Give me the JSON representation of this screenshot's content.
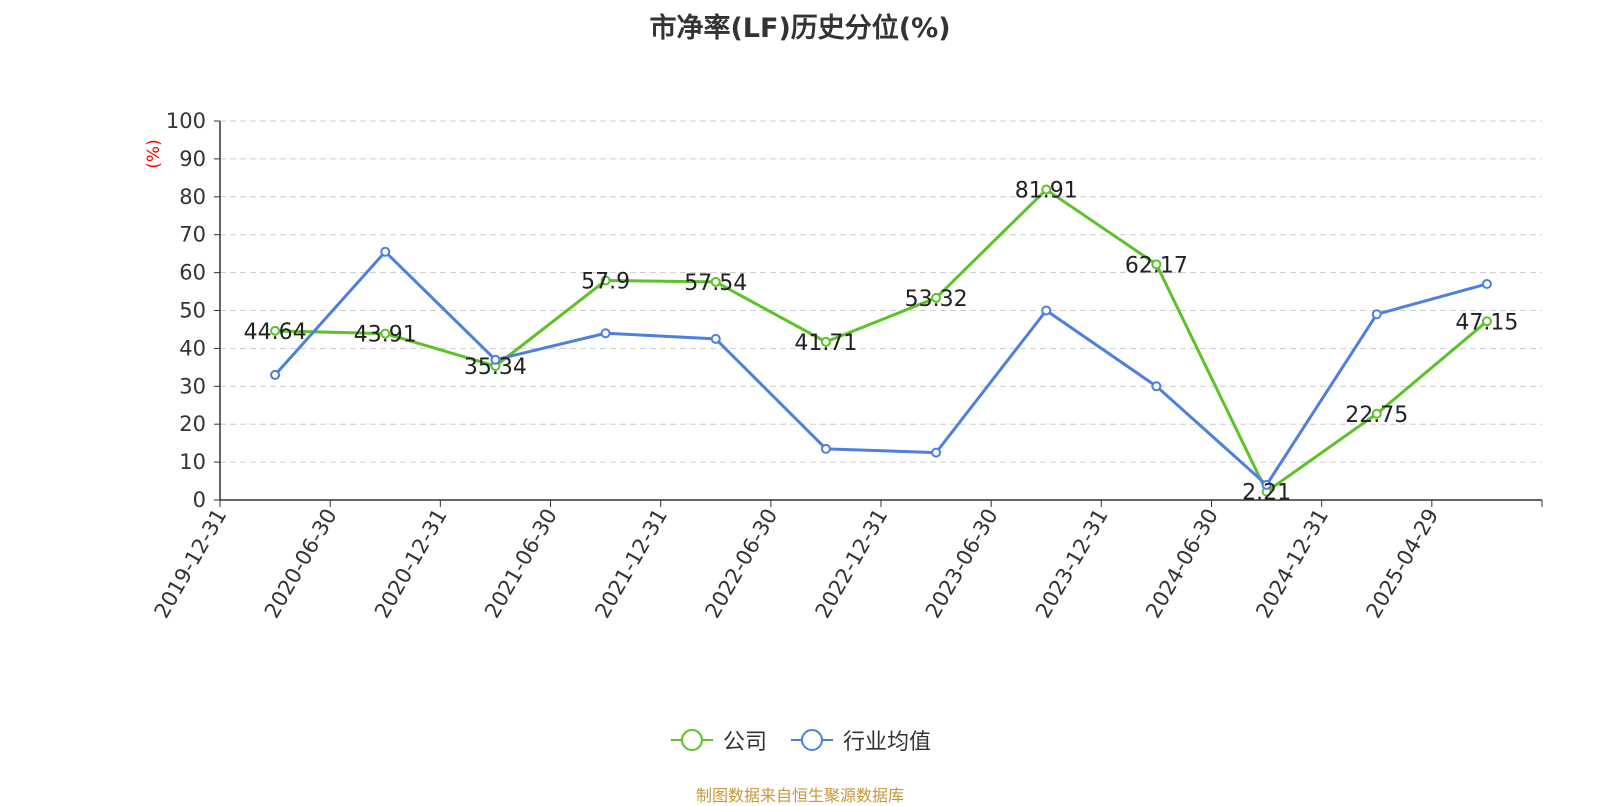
{
  "chart_data": {
    "type": "line",
    "title": "市净率(LF)历史分位(%)",
    "ylabel": "(%)",
    "ylim": [
      0,
      100
    ],
    "yticks": [
      0,
      10,
      20,
      30,
      40,
      50,
      60,
      70,
      80,
      90,
      100
    ],
    "grid": true,
    "legend_position": "bottom",
    "categories": [
      "2019-12-31",
      "2020-06-30",
      "2020-12-31",
      "2021-06-30",
      "2021-12-31",
      "2022-06-30",
      "2022-12-31",
      "2023-06-30",
      "2023-12-31",
      "2024-06-30",
      "2024-12-31",
      "2025-04-29"
    ],
    "series": [
      {
        "name": "公司",
        "color": "#5cc227",
        "values": [
          44.64,
          43.91,
          35.34,
          57.9,
          57.54,
          41.71,
          53.32,
          81.91,
          62.17,
          2.21,
          22.75,
          47.15
        ],
        "labels": [
          "44.64",
          "43.91",
          "35.34",
          "57.9",
          "57.54",
          "41.71",
          "53.32",
          "81.91",
          "62.17",
          "2.21",
          "22.75",
          "47.15"
        ]
      },
      {
        "name": "行业均值",
        "color": "#4f7fde",
        "values": [
          33,
          65.5,
          37,
          44,
          42.5,
          13.5,
          12.5,
          50,
          30,
          4,
          49,
          57
        ]
      }
    ]
  },
  "source": "制图数据来自恒生聚源数据库"
}
